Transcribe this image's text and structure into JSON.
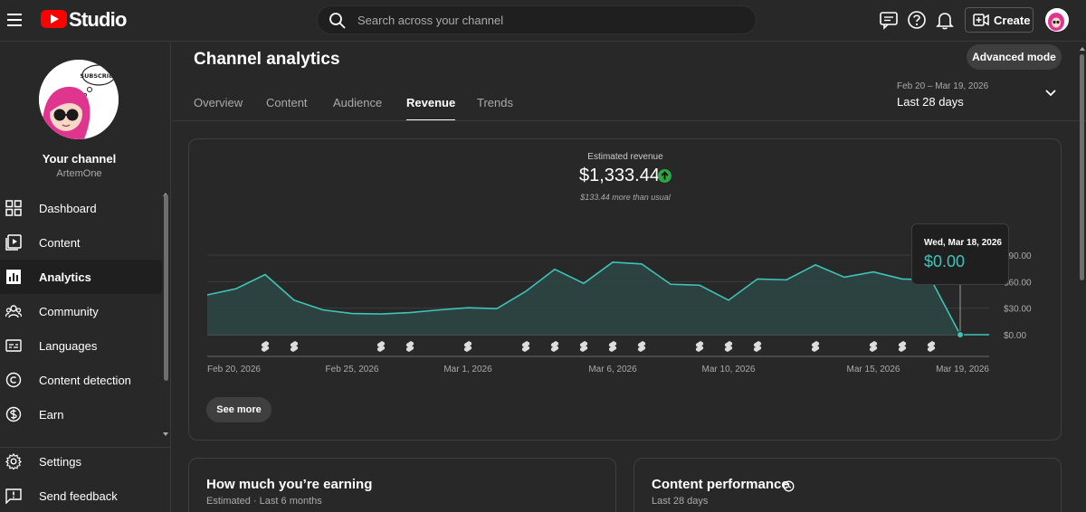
{
  "app": {
    "logo_text": "Studio",
    "search_placeholder": "Search across your channel",
    "create_label": "Create",
    "icons": [
      "menu-icon",
      "youtube-logo-icon",
      "search-icon",
      "feedback-message-icon",
      "help-icon",
      "bell-icon",
      "create-video-icon",
      "avatar"
    ]
  },
  "sidebar": {
    "channel_title": "Your channel",
    "channel_handle": "ArtemOne",
    "avatar_bubble_text": "SUBSCRIBE",
    "items": [
      {
        "label": "Dashboard",
        "icon": "dashboard-icon",
        "active": false
      },
      {
        "label": "Content",
        "icon": "content-icon",
        "active": false
      },
      {
        "label": "Analytics",
        "icon": "analytics-icon",
        "active": true
      },
      {
        "label": "Community",
        "icon": "community-icon",
        "active": false
      },
      {
        "label": "Languages",
        "icon": "languages-icon",
        "active": false
      },
      {
        "label": "Content detection",
        "icon": "copyright-icon",
        "active": false
      },
      {
        "label": "Earn",
        "icon": "dollar-icon",
        "active": false
      }
    ],
    "bottom_items": [
      {
        "label": "Settings",
        "icon": "gear-icon"
      },
      {
        "label": "Send feedback",
        "icon": "feedback-icon"
      }
    ]
  },
  "main": {
    "title": "Channel analytics",
    "advanced_mode_label": "Advanced mode",
    "tabs": [
      {
        "label": "Overview",
        "active": false
      },
      {
        "label": "Content",
        "active": false
      },
      {
        "label": "Audience",
        "active": false
      },
      {
        "label": "Revenue",
        "active": true
      },
      {
        "label": "Trends",
        "active": false
      }
    ],
    "date_range": {
      "dates": "Feb 20 – Mar 19, 2026",
      "label": "Last 28 days"
    },
    "revenue_card": {
      "label": "Estimated revenue",
      "value": "$1,333.44",
      "note": "$133.44 more than usual",
      "see_more_label": "See more",
      "tooltip": {
        "date": "Wed, Mar 18, 2026",
        "value": "$0.00"
      }
    },
    "earning_card": {
      "title": "How much you’re earning",
      "subtitle": "Estimated · Last 6 months"
    },
    "performance_card": {
      "title": "Content performance",
      "subtitle": "Last 28 days"
    }
  },
  "colors": {
    "background": "#282828",
    "line": "#3ec4b8",
    "area": "#2c4644",
    "brand_red": "#ff0000",
    "up_green": "#2ba640"
  },
  "chart_data": {
    "type": "area",
    "title": "Estimated revenue",
    "x": [
      "Feb 20",
      "Feb 21",
      "Feb 22",
      "Feb 23",
      "Feb 24",
      "Feb 25",
      "Feb 26",
      "Feb 27",
      "Feb 28",
      "Mar 1",
      "Mar 2",
      "Mar 3",
      "Mar 4",
      "Mar 5",
      "Mar 6",
      "Mar 7",
      "Mar 8",
      "Mar 9",
      "Mar 10",
      "Mar 11",
      "Mar 12",
      "Mar 13",
      "Mar 14",
      "Mar 15",
      "Mar 16",
      "Mar 17",
      "Mar 18",
      "Mar 19"
    ],
    "x_tick_labels": [
      "Feb 20, 2026",
      "Feb 25, 2026",
      "Mar 1, 2026",
      "Mar 6, 2026",
      "Mar 10, 2026",
      "Mar 15, 2026",
      "Mar 19, 2026"
    ],
    "x_tick_indices": [
      0,
      5,
      9,
      14,
      18,
      23,
      27
    ],
    "series": [
      {
        "values": [
          45,
          52,
          68,
          39,
          28,
          24,
          23.5,
          25,
          28,
          30.5,
          29.5,
          49,
          74,
          58,
          82,
          80,
          57,
          56,
          39,
          63,
          62,
          79,
          65,
          71,
          63,
          62,
          0,
          0
        ]
      }
    ],
    "y_tick_labels": [
      "$0.00",
      "$30.00",
      "$60.00",
      "$90.00"
    ],
    "y_ticks": [
      0,
      30,
      60,
      90
    ],
    "ylim": [
      0,
      90
    ],
    "grid": true,
    "highlight_index": 26,
    "video_markers": [
      2,
      3,
      6,
      7,
      9,
      11,
      12,
      13,
      14,
      15,
      17,
      18,
      19,
      21,
      23,
      24,
      25
    ]
  }
}
